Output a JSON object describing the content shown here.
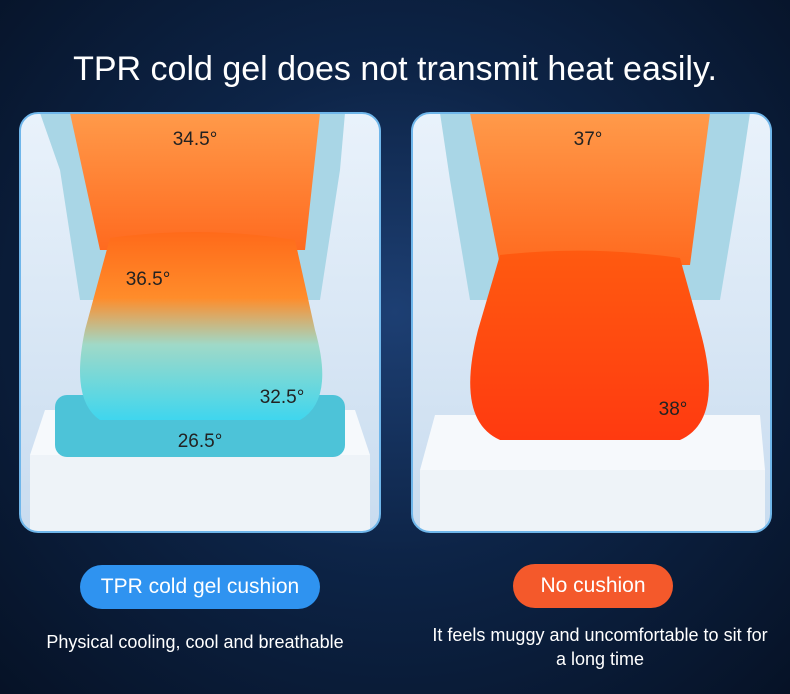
{
  "header": {
    "title": "TPR cold gel does not transmit heat easily."
  },
  "panels": [
    {
      "temperatures": [
        "34.5°",
        "36.5°",
        "32.5°",
        "26.5°"
      ],
      "button": "TPR cold gel cushion",
      "caption": "Physical cooling, cool and breathable"
    },
    {
      "temperatures": [
        "37°",
        "38°"
      ],
      "button": "No cushion",
      "caption": "It feels muggy and uncomfortable to sit for a long time"
    }
  ]
}
